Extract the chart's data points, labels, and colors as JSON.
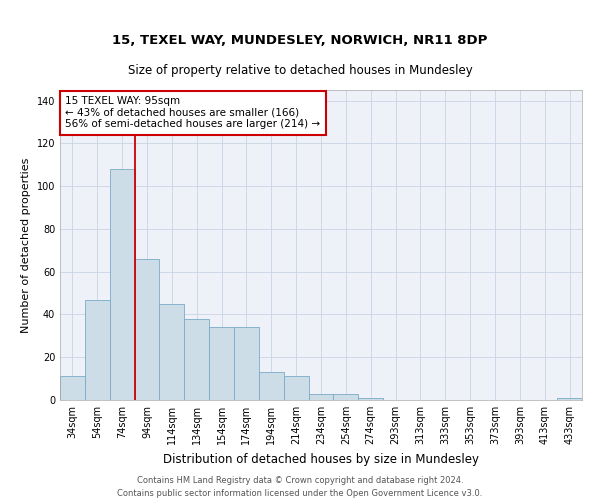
{
  "title": "15, TEXEL WAY, MUNDESLEY, NORWICH, NR11 8DP",
  "subtitle": "Size of property relative to detached houses in Mundesley",
  "xlabel": "Distribution of detached houses by size in Mundesley",
  "ylabel": "Number of detached properties",
  "categories": [
    "34sqm",
    "54sqm",
    "74sqm",
    "94sqm",
    "114sqm",
    "134sqm",
    "154sqm",
    "174sqm",
    "194sqm",
    "214sqm",
    "234sqm",
    "254sqm",
    "274sqm",
    "293sqm",
    "313sqm",
    "333sqm",
    "353sqm",
    "373sqm",
    "393sqm",
    "413sqm",
    "433sqm"
  ],
  "values": [
    11,
    47,
    108,
    66,
    45,
    38,
    34,
    34,
    13,
    11,
    3,
    3,
    1,
    0,
    0,
    0,
    0,
    0,
    0,
    0,
    1
  ],
  "bar_color": "#ccdde8",
  "bar_edge_color": "#7aaac8",
  "annotation_text": "15 TEXEL WAY: 95sqm\n← 43% of detached houses are smaller (166)\n56% of semi-detached houses are larger (214) →",
  "annotation_box_color": "#ffffff",
  "annotation_box_edge_color": "#cc0000",
  "red_line_x": 2.5,
  "ylim": [
    0,
    145
  ],
  "yticks": [
    0,
    20,
    40,
    60,
    80,
    100,
    120,
    140
  ],
  "background_color": "#eef2f8",
  "grid_color": "#c8d4e4",
  "footer_line1": "Contains HM Land Registry data © Crown copyright and database right 2024.",
  "footer_line2": "Contains public sector information licensed under the Open Government Licence v3.0.",
  "title_fontsize": 9.5,
  "subtitle_fontsize": 8.5,
  "xlabel_fontsize": 8.5,
  "ylabel_fontsize": 8,
  "tick_fontsize": 7,
  "annotation_fontsize": 7.5,
  "footer_fontsize": 6
}
